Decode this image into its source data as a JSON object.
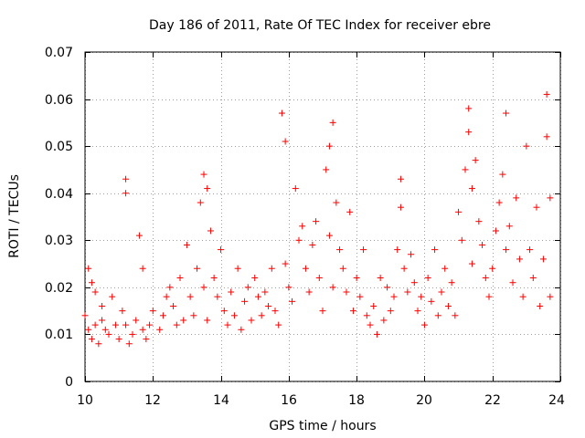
{
  "chart_data": {
    "type": "scatter",
    "title": "Day 186 of 2011, Rate Of TEC Index for receiver ebre",
    "xlabel": "GPS time / hours",
    "ylabel": "ROTI / TECUs",
    "xlim": [
      10,
      24
    ],
    "ylim": [
      0,
      0.07
    ],
    "xticks": [
      "10",
      "12",
      "14",
      "16",
      "18",
      "20",
      "22",
      "24"
    ],
    "yticks": [
      "0",
      "0.01",
      "0.02",
      "0.03",
      "0.04",
      "0.05",
      "0.06",
      "0.07"
    ],
    "grid": true,
    "marker": "+",
    "color": "#ff0000",
    "series": [
      {
        "name": "ROTI",
        "x": [
          10.0,
          10.1,
          10.1,
          10.2,
          10.2,
          10.3,
          10.3,
          10.4,
          10.5,
          10.5,
          10.6,
          10.7,
          10.8,
          10.9,
          11.0,
          11.1,
          11.2,
          11.2,
          11.2,
          11.3,
          11.4,
          11.5,
          11.6,
          11.7,
          11.7,
          11.8,
          11.9,
          12.0,
          12.2,
          12.3,
          12.4,
          12.5,
          12.6,
          12.7,
          12.8,
          12.9,
          13.0,
          13.1,
          13.2,
          13.3,
          13.4,
          13.5,
          13.5,
          13.6,
          13.6,
          13.7,
          13.8,
          13.9,
          14.0,
          14.1,
          14.2,
          14.3,
          14.4,
          14.5,
          14.6,
          14.7,
          14.8,
          14.9,
          15.0,
          15.1,
          15.2,
          15.3,
          15.4,
          15.5,
          15.6,
          15.7,
          15.8,
          15.9,
          15.9,
          16.0,
          16.1,
          16.2,
          16.3,
          16.4,
          16.5,
          16.6,
          16.7,
          16.8,
          16.9,
          17.0,
          17.1,
          17.2,
          17.2,
          17.3,
          17.3,
          17.4,
          17.5,
          17.6,
          17.7,
          17.8,
          17.9,
          18.0,
          18.1,
          18.2,
          18.3,
          18.4,
          18.5,
          18.6,
          18.7,
          18.8,
          18.9,
          19.0,
          19.1,
          19.2,
          19.3,
          19.3,
          19.4,
          19.5,
          19.6,
          19.7,
          19.8,
          19.9,
          20.0,
          20.1,
          20.2,
          20.3,
          20.4,
          20.5,
          20.6,
          20.7,
          20.8,
          20.9,
          21.0,
          21.1,
          21.2,
          21.3,
          21.3,
          21.4,
          21.4,
          21.5,
          21.6,
          21.7,
          21.8,
          21.9,
          22.0,
          22.1,
          22.2,
          22.3,
          22.4,
          22.4,
          22.5,
          22.6,
          22.7,
          22.8,
          22.9,
          23.0,
          23.1,
          23.2,
          23.3,
          23.4,
          23.5,
          23.6,
          23.6,
          23.7,
          23.7
        ],
        "y": [
          0.014,
          0.024,
          0.011,
          0.021,
          0.009,
          0.019,
          0.012,
          0.008,
          0.013,
          0.016,
          0.011,
          0.01,
          0.018,
          0.012,
          0.009,
          0.015,
          0.043,
          0.04,
          0.012,
          0.008,
          0.01,
          0.013,
          0.031,
          0.024,
          0.011,
          0.009,
          0.012,
          0.015,
          0.011,
          0.014,
          0.018,
          0.02,
          0.016,
          0.012,
          0.022,
          0.013,
          0.029,
          0.018,
          0.014,
          0.024,
          0.038,
          0.044,
          0.02,
          0.041,
          0.013,
          0.032,
          0.022,
          0.018,
          0.028,
          0.015,
          0.012,
          0.019,
          0.014,
          0.024,
          0.011,
          0.017,
          0.02,
          0.013,
          0.022,
          0.018,
          0.014,
          0.019,
          0.016,
          0.024,
          0.015,
          0.012,
          0.057,
          0.051,
          0.025,
          0.02,
          0.017,
          0.041,
          0.03,
          0.033,
          0.024,
          0.019,
          0.029,
          0.034,
          0.022,
          0.015,
          0.045,
          0.05,
          0.031,
          0.055,
          0.02,
          0.038,
          0.028,
          0.024,
          0.019,
          0.036,
          0.015,
          0.022,
          0.018,
          0.028,
          0.014,
          0.012,
          0.016,
          0.01,
          0.022,
          0.013,
          0.02,
          0.015,
          0.018,
          0.028,
          0.043,
          0.037,
          0.024,
          0.019,
          0.027,
          0.021,
          0.015,
          0.018,
          0.012,
          0.022,
          0.017,
          0.028,
          0.014,
          0.019,
          0.024,
          0.016,
          0.021,
          0.014,
          0.036,
          0.03,
          0.045,
          0.058,
          0.053,
          0.041,
          0.025,
          0.047,
          0.034,
          0.029,
          0.022,
          0.018,
          0.024,
          0.032,
          0.038,
          0.044,
          0.028,
          0.057,
          0.033,
          0.021,
          0.039,
          0.026,
          0.018,
          0.05,
          0.028,
          0.022,
          0.037,
          0.016,
          0.026,
          0.061,
          0.052,
          0.039,
          0.018
        ]
      }
    ]
  }
}
